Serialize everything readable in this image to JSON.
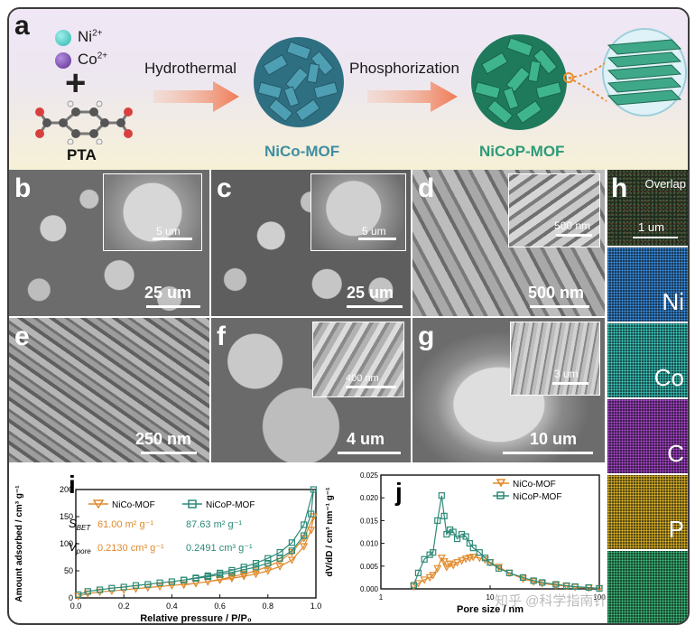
{
  "figure": {
    "panel_labels": {
      "a": "a",
      "b": "b",
      "c": "c",
      "d": "d",
      "e": "e",
      "f": "f",
      "g": "g",
      "h": "h",
      "i": "i",
      "j": "j"
    },
    "scheme": {
      "ion_ni": "Ni",
      "ion_ni_charge": "2+",
      "ion_co": "Co",
      "ion_co_charge": "2+",
      "plus": "+",
      "linker": "PTA",
      "step1": "Hydrothermal",
      "step2": "Phosphorization",
      "product1": "NiCo-MOF",
      "product2": "NiCoP-MOF",
      "colors": {
        "ni": "#3cc3bd",
        "co": "#6a3fa0",
        "arrow": "#f08060",
        "mof": "#3d8fa3",
        "nicop": "#2fa882",
        "product1_text": "#3f8ea3",
        "product2_text": "#2d9a7a"
      }
    },
    "sem": {
      "b": {
        "scale_main": "25 um",
        "scale_inset": "5 um"
      },
      "c": {
        "scale_main": "25 um",
        "scale_inset": "5 um"
      },
      "d": {
        "scale_main": "500 nm",
        "scale_inset": "500 nm"
      },
      "e": {
        "scale_main": "250 nm"
      },
      "f": {
        "scale_main": "4 um",
        "scale_inset": "400 nm"
      },
      "g": {
        "scale_main": "10 um",
        "scale_inset": "3 um"
      }
    },
    "mapping": {
      "overlap_label": "Overlap",
      "overlap_scale": "1 um",
      "elements": [
        {
          "label": "Ni",
          "color": "#2a6fb5"
        },
        {
          "label": "Co",
          "color": "#2aa5a0"
        },
        {
          "label": "C",
          "color": "#8c3aa6"
        },
        {
          "label": "P",
          "color": "#c9a21f"
        },
        {
          "label": "",
          "color": "#2f8f5a"
        }
      ]
    },
    "panel_i": {
      "legend": [
        "NiCo-MOF",
        "NiCoP-MOF"
      ],
      "sbet_label": "S",
      "sbet_sub": "BET",
      "vpore_label": "V",
      "vpore_sub": "pore",
      "sbet_nicomof": "61.00 m² g⁻¹",
      "sbet_nicopmof": "87.63 m² g⁻¹",
      "vpore_nicomof": "0.2130 cm³ g⁻¹",
      "vpore_nicopmof": "0.2491 cm³ g⁻¹"
    },
    "watermark": "知乎 @科学指南针"
  },
  "chart_data": [
    {
      "type": "line",
      "panel": "i",
      "xlabel": "Relative pressure / P/P₀",
      "ylabel": "Amount adsorbed / cm³ g⁻¹",
      "xlim": [
        0,
        1.0
      ],
      "ylim": [
        0,
        200
      ],
      "xticks": [
        "0.0",
        "0.2",
        "0.4",
        "0.6",
        "0.8",
        "1.0"
      ],
      "yticks": [
        "0",
        "50",
        "100",
        "150",
        "200"
      ],
      "series": [
        {
          "name": "NiCo-MOF",
          "color": "#e08a2c",
          "marker": "triangle-down",
          "x": [
            0.01,
            0.05,
            0.1,
            0.15,
            0.2,
            0.25,
            0.3,
            0.35,
            0.4,
            0.45,
            0.5,
            0.55,
            0.6,
            0.65,
            0.7,
            0.75,
            0.8,
            0.85,
            0.9,
            0.95,
            0.98,
            0.99,
            0.95,
            0.9,
            0.85,
            0.8,
            0.75,
            0.7,
            0.65,
            0.6,
            0.55,
            0.5,
            0.45
          ],
          "y": [
            3,
            8,
            11,
            13,
            15,
            17,
            19,
            21,
            23,
            25,
            27,
            30,
            33,
            36,
            40,
            44,
            50,
            58,
            70,
            95,
            125,
            150,
            110,
            84,
            68,
            58,
            50,
            44,
            39,
            34,
            30,
            27,
            24
          ]
        },
        {
          "name": "NiCoP-MOF",
          "color": "#2e8a78",
          "marker": "square",
          "x": [
            0.01,
            0.05,
            0.1,
            0.15,
            0.2,
            0.25,
            0.3,
            0.35,
            0.4,
            0.45,
            0.5,
            0.55,
            0.6,
            0.65,
            0.7,
            0.75,
            0.8,
            0.85,
            0.9,
            0.95,
            0.98,
            0.99,
            0.95,
            0.9,
            0.85,
            0.8,
            0.75,
            0.7,
            0.65,
            0.6,
            0.55,
            0.5,
            0.45
          ],
          "y": [
            6,
            12,
            15,
            18,
            20,
            23,
            25,
            28,
            30,
            33,
            36,
            39,
            43,
            47,
            52,
            57,
            64,
            73,
            87,
            115,
            155,
            200,
            135,
            102,
            84,
            73,
            64,
            57,
            51,
            46,
            41,
            37,
            33
          ]
        }
      ]
    },
    {
      "type": "line",
      "panel": "j",
      "xlabel": "Pore size / nm",
      "ylabel": "dV/dD / cm³ nm⁻¹ g⁻¹",
      "xscale": "log",
      "xlim": [
        1,
        100
      ],
      "ylim": [
        0,
        0.025
      ],
      "xticks": [
        "1",
        "10",
        "100"
      ],
      "yticks": [
        "0.000",
        "0.005",
        "0.010",
        "0.015",
        "0.020",
        "0.025"
      ],
      "series": [
        {
          "name": "NiCo-MOF",
          "color": "#e08a2c",
          "marker": "triangle-down",
          "x": [
            2.0,
            2.2,
            2.5,
            2.8,
            3.0,
            3.3,
            3.6,
            3.8,
            4.0,
            4.3,
            4.6,
            5.0,
            5.5,
            6.0,
            6.5,
            7.0,
            8.0,
            9.0,
            10,
            12,
            15,
            20,
            25,
            30,
            40,
            50,
            60,
            80,
            100
          ],
          "y": [
            0.0005,
            0.0012,
            0.002,
            0.0025,
            0.003,
            0.0045,
            0.0068,
            0.006,
            0.0048,
            0.0055,
            0.0052,
            0.0058,
            0.0062,
            0.0066,
            0.0068,
            0.007,
            0.0068,
            0.0064,
            0.0058,
            0.0048,
            0.0035,
            0.0022,
            0.0016,
            0.0012,
            0.0008,
            0.0006,
            0.0004,
            0.0002,
            0.0001
          ]
        },
        {
          "name": "NiCoP-MOF",
          "color": "#2e8a78",
          "marker": "square",
          "x": [
            2.0,
            2.2,
            2.5,
            2.8,
            3.0,
            3.3,
            3.6,
            3.8,
            4.0,
            4.3,
            4.6,
            5.0,
            5.5,
            6.0,
            6.5,
            7.0,
            8.0,
            9.0,
            10,
            12,
            15,
            20,
            25,
            30,
            40,
            50,
            60,
            80,
            100
          ],
          "y": [
            0.0008,
            0.0035,
            0.0065,
            0.0075,
            0.008,
            0.015,
            0.0205,
            0.016,
            0.012,
            0.013,
            0.0125,
            0.011,
            0.012,
            0.0115,
            0.01,
            0.009,
            0.008,
            0.0068,
            0.0058,
            0.0045,
            0.0035,
            0.0025,
            0.0018,
            0.0014,
            0.001,
            0.0007,
            0.0005,
            0.0003,
            0.0001
          ]
        }
      ]
    }
  ]
}
